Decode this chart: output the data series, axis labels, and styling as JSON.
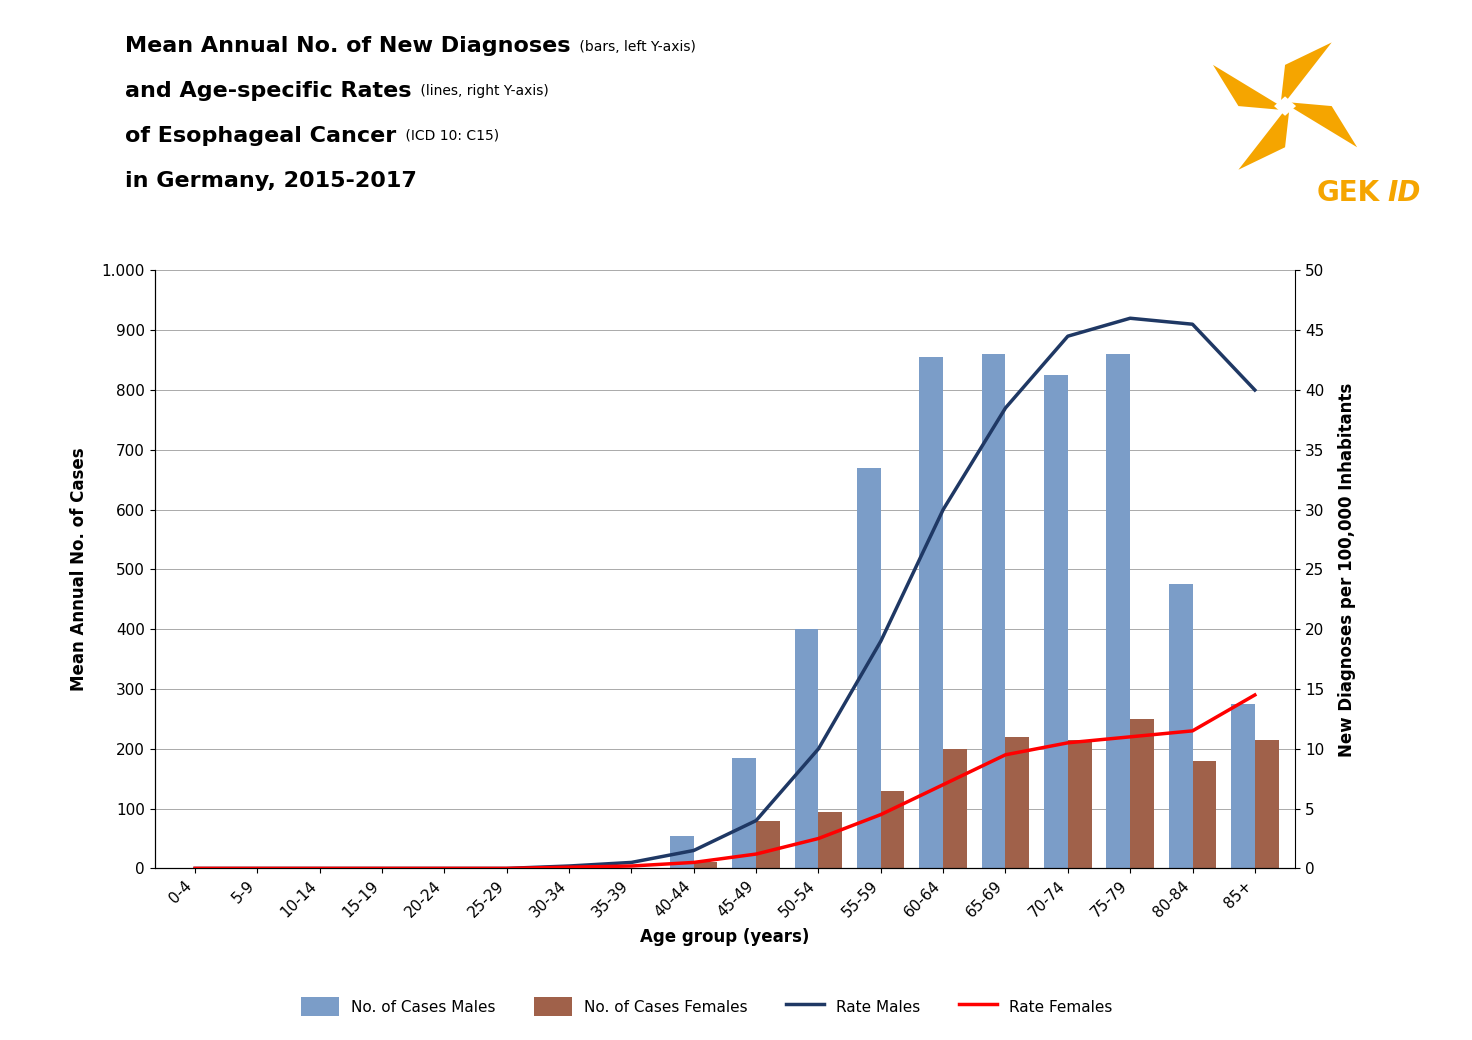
{
  "age_groups": [
    "0-4",
    "5-9",
    "10-14",
    "15-19",
    "20-24",
    "25-29",
    "30-34",
    "35-39",
    "40-44",
    "45-49",
    "50-54",
    "55-59",
    "60-64",
    "65-69",
    "70-74",
    "75-79",
    "80-84",
    "85+"
  ],
  "cases_males": [
    0,
    0,
    0,
    0,
    0,
    0,
    0,
    0,
    55,
    185,
    400,
    670,
    855,
    860,
    825,
    860,
    475,
    275
  ],
  "cases_females": [
    0,
    0,
    0,
    0,
    0,
    0,
    0,
    0,
    10,
    80,
    95,
    130,
    200,
    220,
    215,
    250,
    180,
    215
  ],
  "rate_males": [
    0,
    0,
    0,
    0,
    0,
    0,
    0.2,
    0.5,
    1.5,
    4.0,
    10.0,
    19.0,
    30.0,
    38.5,
    44.5,
    46.0,
    45.5,
    40.0
  ],
  "rate_females": [
    0,
    0,
    0,
    0,
    0,
    0,
    0.1,
    0.2,
    0.5,
    1.2,
    2.5,
    4.5,
    7.0,
    9.5,
    10.5,
    11.0,
    11.5,
    14.5
  ],
  "bar_color_males": "#7B9DC8",
  "bar_color_females": "#A0614A",
  "line_color_males": "#1F3864",
  "line_color_females": "#FF0000",
  "logo_color": "#F5A500",
  "logo_text_color": "#F5A500",
  "ylabel_left": "Mean Annual No. of Cases",
  "ylabel_right": "New Diagnoses per 100,000 Inhabitants",
  "xlabel": "Age group (years)",
  "yticks_left_vals": [
    0,
    100,
    200,
    300,
    400,
    500,
    600,
    700,
    800,
    900,
    1000
  ],
  "yticks_left_labels": [
    "0",
    "100",
    "200",
    "300",
    "400",
    "500",
    "600",
    "700",
    "800",
    "900",
    "1.000"
  ],
  "yticks_right_vals": [
    0,
    5,
    10,
    15,
    20,
    25,
    30,
    35,
    40,
    45,
    50
  ],
  "background_color": "#FFFFFF",
  "legend_labels": [
    "No. of Cases Males",
    "No. of Cases Females",
    "Rate Males",
    "Rate Females"
  ],
  "title_bold1": "Mean Annual No. of New Diagnoses",
  "title_small1": " (bars, left Y-axis)",
  "title_bold2": "and Age-specific Rates",
  "title_small2": " (lines, right Y-axis)",
  "title_bold3": "of Esophageal Cancer",
  "title_small3": " (ICD 10: C15)",
  "title_bold4": "in Germany, 2015-2017"
}
